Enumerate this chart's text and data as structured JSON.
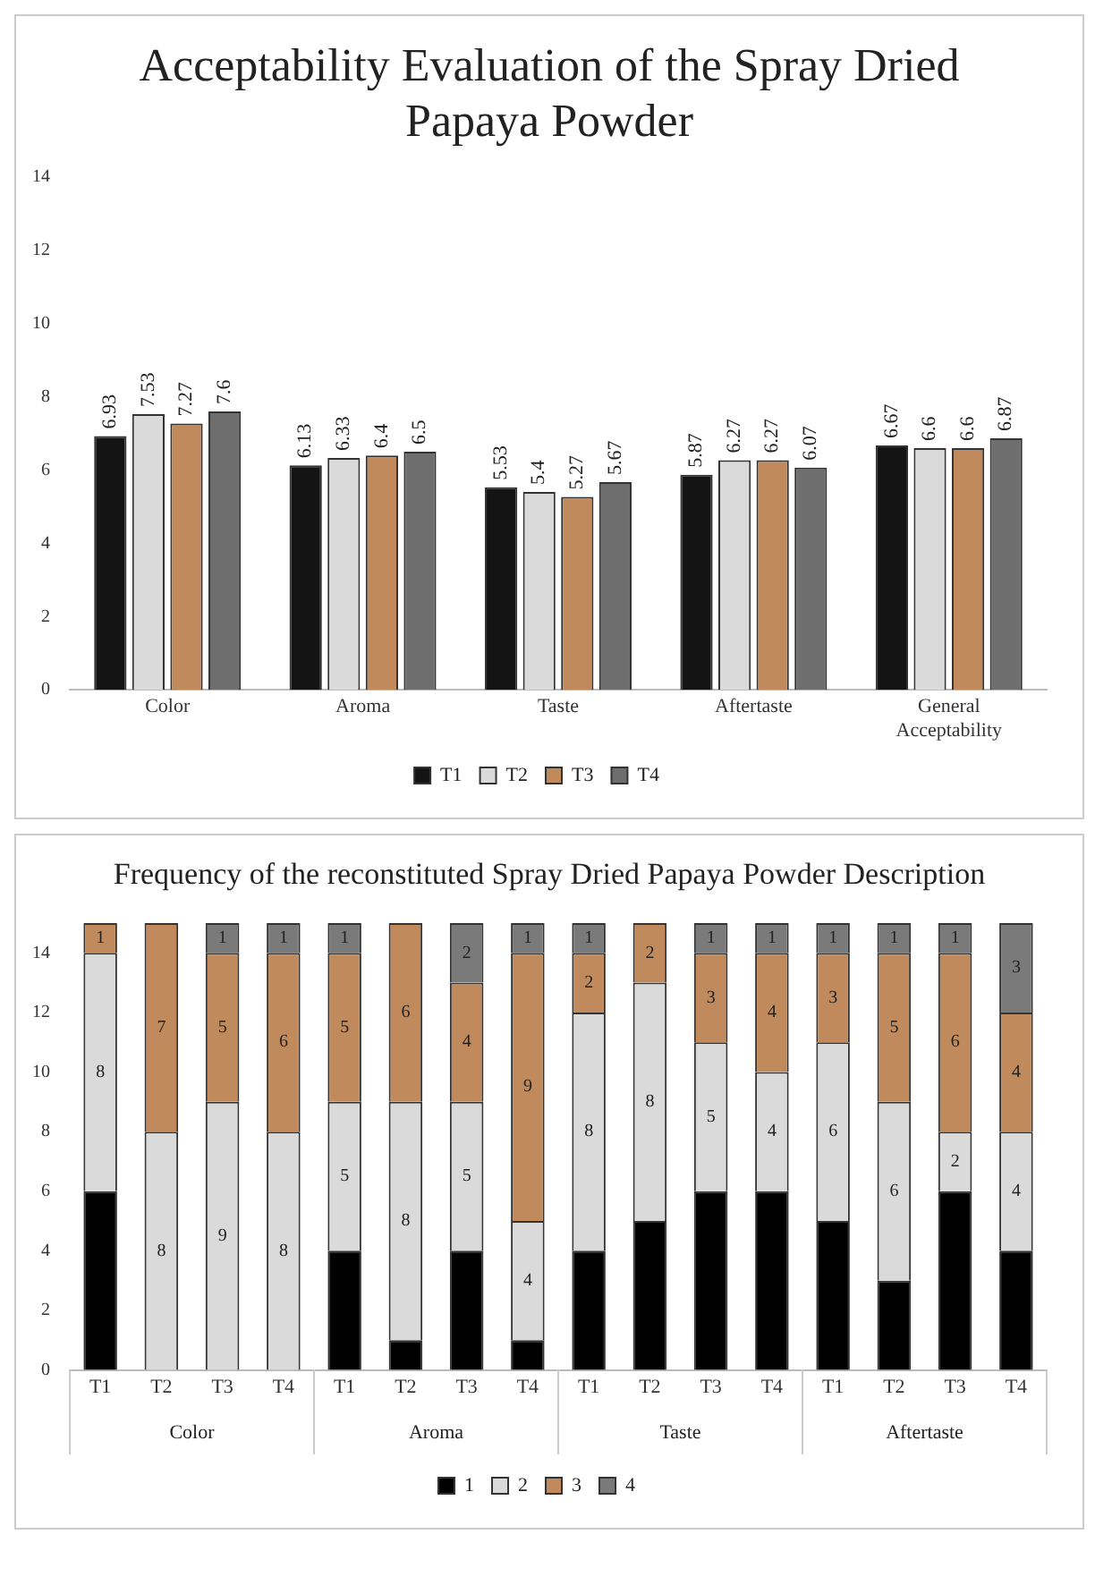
{
  "chart_data": [
    {
      "type": "bar",
      "title": "Acceptability Evaluation of the Spray Dried Papaya Powder",
      "categories": [
        "Color",
        "Aroma",
        "Taste",
        "Aftertaste",
        "General Acceptability"
      ],
      "series": [
        {
          "name": "T1",
          "color": "#141414",
          "values": [
            6.93,
            6.13,
            5.53,
            5.87,
            6.67
          ]
        },
        {
          "name": "T2",
          "color": "#dadada",
          "values": [
            7.53,
            6.33,
            5.4,
            6.27,
            6.6
          ]
        },
        {
          "name": "T3",
          "color": "#c08a5c",
          "values": [
            7.27,
            6.4,
            5.27,
            6.27,
            6.6
          ]
        },
        {
          "name": "T4",
          "color": "#6e6e6e",
          "values": [
            7.6,
            6.5,
            5.67,
            6.07,
            6.87
          ]
        }
      ],
      "ylim": [
        0,
        14
      ],
      "yticks": [
        0,
        2,
        4,
        6,
        8,
        10,
        12,
        14
      ],
      "grid": false,
      "legend": "bottom",
      "data_labels": true
    },
    {
      "type": "bar",
      "title": "Frequency of the reconstituted Spray Dried Papaya Powder Description",
      "categories": [
        "T1",
        "T2",
        "T3",
        "T4",
        "T1",
        "T2",
        "T3",
        "T4",
        "T1",
        "T2",
        "T3",
        "T4",
        "T1",
        "T2",
        "T3",
        "T4"
      ],
      "annotations": [
        "Color",
        "Aroma",
        "Taste",
        "Aftertaste"
      ],
      "stacked": true,
      "series": [
        {
          "name": "1",
          "color": "#000000",
          "values": [
            6,
            null,
            null,
            null,
            4,
            1,
            4,
            1,
            4,
            5,
            6,
            6,
            5,
            3,
            6,
            4
          ],
          "value_labels": [
            null,
            null,
            null,
            null,
            null,
            null,
            null,
            null,
            null,
            null,
            null,
            null,
            null,
            null,
            null,
            null
          ]
        },
        {
          "name": "2",
          "color": "#dadada",
          "values": [
            8,
            8,
            9,
            8,
            5,
            8,
            5,
            4,
            8,
            8,
            5,
            4,
            6,
            6,
            2,
            4
          ],
          "value_labels": [
            "8",
            "8",
            "9",
            "8",
            "5",
            "8",
            "5",
            "4",
            "8",
            "8",
            "5",
            "4",
            "6",
            "6",
            "2",
            "4"
          ]
        },
        {
          "name": "3",
          "color": "#c08a5c",
          "values": [
            1,
            7,
            5,
            6,
            5,
            6,
            4,
            9,
            2,
            2,
            3,
            4,
            3,
            5,
            6,
            4
          ],
          "value_labels": [
            "1",
            "7",
            "5",
            "6",
            "5",
            "6",
            "4",
            "9",
            "2",
            "2",
            "3",
            "4",
            "3",
            "5",
            "6",
            "4"
          ]
        },
        {
          "name": "4",
          "color": "#7a7a7a",
          "values": [
            null,
            null,
            1,
            1,
            1,
            null,
            2,
            1,
            1,
            null,
            1,
            1,
            1,
            1,
            1,
            3
          ],
          "value_labels": [
            null,
            null,
            "1",
            "1",
            "1",
            null,
            "2",
            "1",
            "1",
            null,
            "1",
            "1",
            "1",
            "1",
            "1",
            "3"
          ]
        }
      ],
      "ylim": [
        0,
        15
      ],
      "yticks": [
        0,
        2,
        4,
        6,
        8,
        10,
        12,
        14
      ],
      "grid": false,
      "legend": "bottom"
    }
  ]
}
